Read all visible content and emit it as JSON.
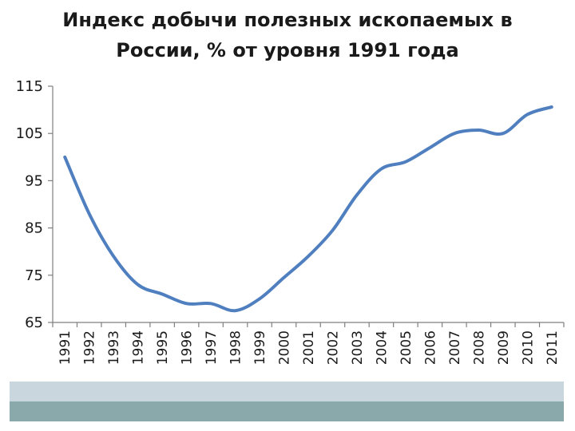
{
  "chart_data": {
    "type": "line",
    "title_lines": [
      "Индекс добычи полезных ископаемых в",
      "России, % от уровня 1991 года"
    ],
    "xlabel": "",
    "ylabel": "",
    "x": [
      "1991",
      "1992",
      "1993",
      "1994",
      "1995",
      "1996",
      "1997",
      "1998",
      "1999",
      "2000",
      "2001",
      "2002",
      "2003",
      "2004",
      "2005",
      "2006",
      "2007",
      "2008",
      "2009",
      "2010",
      "2011"
    ],
    "series": [
      {
        "values": [
          100,
          88,
          79,
          73,
          71,
          69,
          69,
          67.5,
          70,
          74.5,
          79,
          84.5,
          92,
          97.5,
          99,
          102,
          105,
          105.7,
          105,
          109,
          110.6
        ]
      }
    ],
    "ylim": [
      65,
      115
    ],
    "yticks": [
      "115",
      "105",
      "95",
      "85",
      "75",
      "65"
    ],
    "ytick_values": [
      115,
      105,
      95,
      85,
      75,
      65
    ],
    "grid": false,
    "legend": "none",
    "line_color": "#4f7fbf",
    "axis_color": "#7f7f7f"
  },
  "footer": {
    "band_light_color": "#c9d6dd",
    "band_dark_color": "#8aa9ab"
  }
}
